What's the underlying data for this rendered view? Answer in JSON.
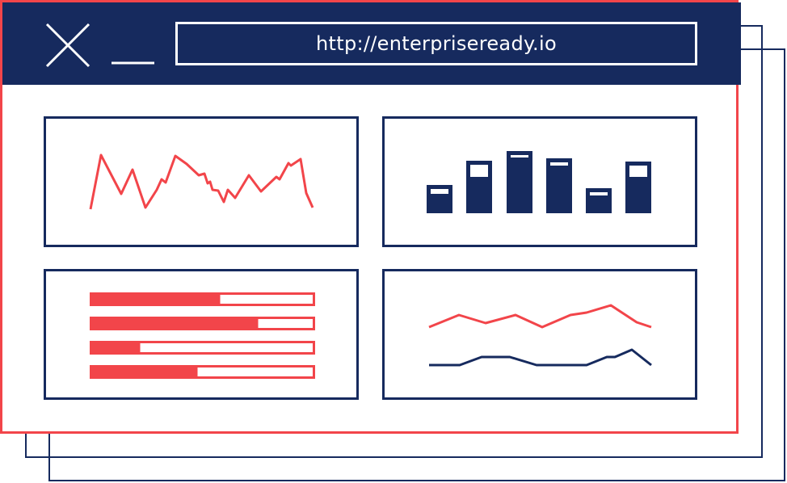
{
  "browser": {
    "url": "http://enterpriseready.io",
    "close_icon": "close-icon",
    "minimize_icon": "minimize-icon"
  },
  "colors": {
    "navy": "#162a5e",
    "red": "#f2454a",
    "white": "#ffffff"
  },
  "widgets": [
    {
      "name": "line-chart-widget",
      "chart": "line",
      "series_colors": [
        "#f2454a"
      ]
    },
    {
      "name": "bar-chart-widget",
      "chart": "bar",
      "bar_fill_fraction": [
        0.68,
        0.68,
        0.92,
        0.9,
        0.66,
        0.68
      ]
    },
    {
      "name": "progress-bars-widget",
      "chart": "progress",
      "progress": [
        0.58,
        0.75,
        0.22,
        0.48
      ]
    },
    {
      "name": "dual-line-chart-widget",
      "chart": "line",
      "series_colors": [
        "#f2454a",
        "#162a5e"
      ]
    }
  ]
}
